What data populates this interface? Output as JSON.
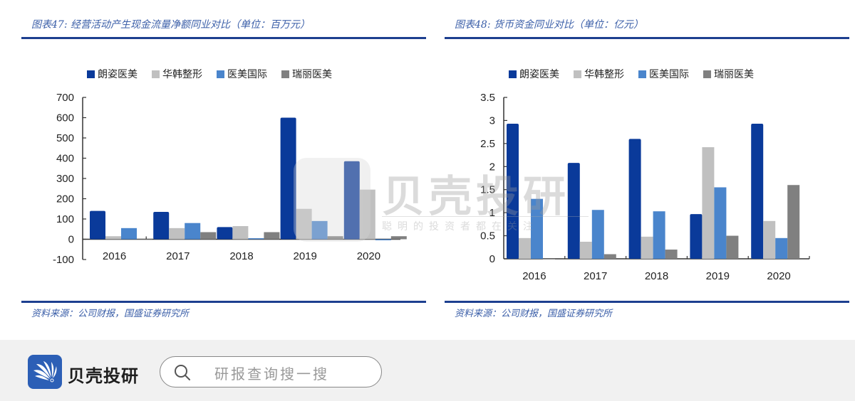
{
  "legend_labels": [
    "朗姿医美",
    "华韩整形",
    "医美国际",
    "瑞丽医美"
  ],
  "series_colors": [
    "#0a3a9a",
    "#c0c0c0",
    "#4a85cc",
    "#808080"
  ],
  "chart_data": [
    {
      "type": "bar",
      "title": "图表47: 经营活动产生现金流量净额同业对比（单位：百万元）",
      "source": "资料来源：公司财报，国盛证券研究所",
      "categories": [
        "2016",
        "2017",
        "2018",
        "2019",
        "2020"
      ],
      "series": [
        {
          "name": "朗姿医美",
          "values": [
            140,
            135,
            60,
            600,
            385
          ]
        },
        {
          "name": "华韩整形",
          "values": [
            15,
            55,
            65,
            150,
            245
          ]
        },
        {
          "name": "医美国际",
          "values": [
            55,
            80,
            5,
            90,
            -5
          ]
        },
        {
          "name": "瑞丽医美",
          "values": [
            0,
            35,
            35,
            15,
            15
          ]
        }
      ],
      "ylim": [
        -100,
        700
      ],
      "yticks": [
        -100,
        0,
        100,
        200,
        300,
        400,
        500,
        600,
        700
      ],
      "xlabel": "",
      "ylabel": "",
      "legend_position": "top",
      "grid": false
    },
    {
      "type": "bar",
      "title": "图表48: 货币资金同业对比（单位：亿元）",
      "source": "资料来源：公司财报，国盛证券研究所",
      "categories": [
        "2016",
        "2017",
        "2018",
        "2019",
        "2020"
      ],
      "series": [
        {
          "name": "朗姿医美",
          "values": [
            2.93,
            2.08,
            2.6,
            0.97,
            2.93
          ]
        },
        {
          "name": "华韩整形",
          "values": [
            0.45,
            0.37,
            0.48,
            2.42,
            0.82
          ]
        },
        {
          "name": "医美国际",
          "values": [
            1.3,
            1.06,
            1.03,
            1.55,
            0.45
          ]
        },
        {
          "name": "瑞丽医美",
          "values": [
            0,
            0.1,
            0.2,
            0.5,
            1.6
          ]
        }
      ],
      "ylim": [
        0,
        3.5
      ],
      "yticks": [
        0,
        0.5,
        1,
        1.5,
        2,
        2.5,
        3,
        3.5
      ],
      "xlabel": "",
      "ylabel": "",
      "legend_position": "top",
      "grid": false
    }
  ],
  "watermark": {
    "brand": "贝壳投研",
    "slogan": "聪明的投资者都在关注"
  },
  "footer": {
    "brand": "贝壳投研",
    "search_placeholder": "研报查询搜一搜",
    "logo_icon": "shell-logo-icon",
    "search_icon": "search-icon"
  }
}
